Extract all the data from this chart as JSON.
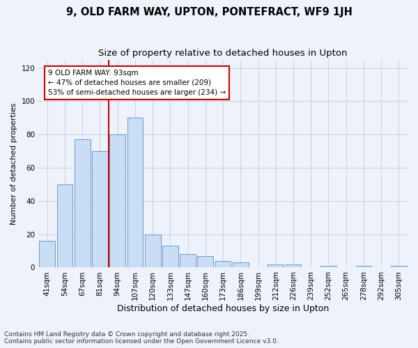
{
  "title": "9, OLD FARM WAY, UPTON, PONTEFRACT, WF9 1JH",
  "subtitle": "Size of property relative to detached houses in Upton",
  "xlabel": "Distribution of detached houses by size in Upton",
  "ylabel": "Number of detached properties",
  "categories": [
    "41sqm",
    "54sqm",
    "67sqm",
    "81sqm",
    "94sqm",
    "107sqm",
    "120sqm",
    "133sqm",
    "147sqm",
    "160sqm",
    "173sqm",
    "186sqm",
    "199sqm",
    "212sqm",
    "226sqm",
    "239sqm",
    "252sqm",
    "265sqm",
    "278sqm",
    "292sqm",
    "305sqm"
  ],
  "values": [
    16,
    50,
    77,
    70,
    80,
    90,
    20,
    13,
    8,
    7,
    4,
    3,
    0,
    2,
    2,
    0,
    1,
    0,
    1,
    0,
    1
  ],
  "bar_color": "#c9ddf5",
  "bar_edge_color": "#5b8ec4",
  "vline_color": "#cc0000",
  "vline_x_index": 4,
  "annotation_line1": "9 OLD FARM WAY: 93sqm",
  "annotation_line2": "← 47% of detached houses are smaller (209)",
  "annotation_line3": "53% of semi-detached houses are larger (234) →",
  "annotation_box_edge_color": "#cc0000",
  "ylim": [
    0,
    125
  ],
  "yticks": [
    0,
    20,
    40,
    60,
    80,
    100,
    120
  ],
  "bg_color": "#eef2fb",
  "footer_line1": "Contains HM Land Registry data © Crown copyright and database right 2025.",
  "footer_line2": "Contains public sector information licensed under the Open Government Licence v3.0.",
  "title_fontsize": 10.5,
  "subtitle_fontsize": 9.5,
  "ylabel_fontsize": 8,
  "xlabel_fontsize": 9,
  "tick_fontsize": 7.5,
  "annot_fontsize": 7.5,
  "footer_fontsize": 6.5
}
